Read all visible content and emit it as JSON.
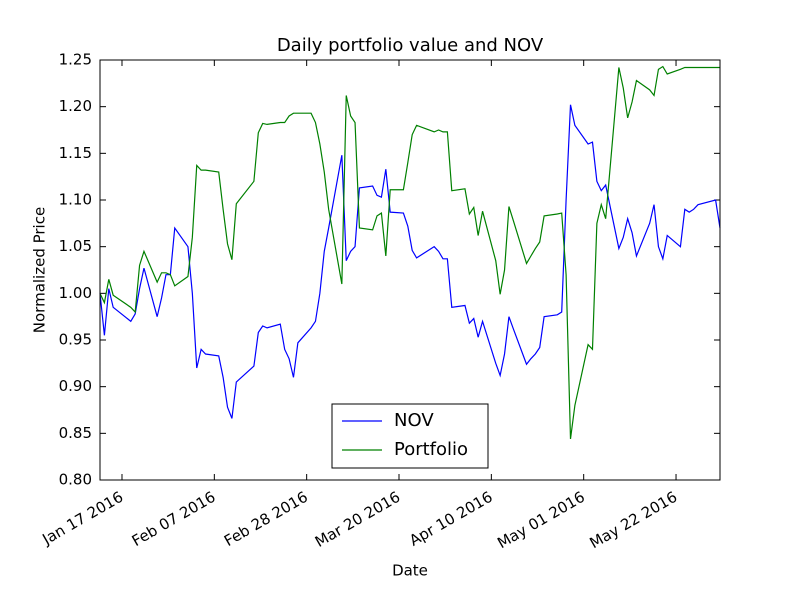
{
  "chart_data": {
    "type": "line",
    "title": "Daily portfolio value and NOV",
    "x_label": "Date",
    "y_label": "Normalized Price",
    "x": [
      "2016-01-12",
      "2016-01-13",
      "2016-01-14",
      "2016-01-15",
      "2016-01-19",
      "2016-01-20",
      "2016-01-21",
      "2016-01-22",
      "2016-01-25",
      "2016-01-26",
      "2016-01-27",
      "2016-01-28",
      "2016-01-29",
      "2016-02-01",
      "2016-02-02",
      "2016-02-03",
      "2016-02-04",
      "2016-02-05",
      "2016-02-08",
      "2016-02-09",
      "2016-02-10",
      "2016-02-11",
      "2016-02-12",
      "2016-02-16",
      "2016-02-17",
      "2016-02-18",
      "2016-02-19",
      "2016-02-22",
      "2016-02-23",
      "2016-02-24",
      "2016-02-25",
      "2016-02-26",
      "2016-02-29",
      "2016-03-01",
      "2016-03-02",
      "2016-03-03",
      "2016-03-04",
      "2016-03-07",
      "2016-03-08",
      "2016-03-09",
      "2016-03-10",
      "2016-03-11",
      "2016-03-14",
      "2016-03-15",
      "2016-03-16",
      "2016-03-17",
      "2016-03-18",
      "2016-03-21",
      "2016-03-22",
      "2016-03-23",
      "2016-03-24",
      "2016-03-28",
      "2016-03-29",
      "2016-03-30",
      "2016-03-31",
      "2016-04-01",
      "2016-04-04",
      "2016-04-05",
      "2016-04-06",
      "2016-04-07",
      "2016-04-08",
      "2016-04-11",
      "2016-04-12",
      "2016-04-13",
      "2016-04-14",
      "2016-04-15",
      "2016-04-18",
      "2016-04-19",
      "2016-04-20",
      "2016-04-21",
      "2016-04-22",
      "2016-04-25",
      "2016-04-26",
      "2016-04-27",
      "2016-04-28",
      "2016-04-29",
      "2016-05-02",
      "2016-05-03",
      "2016-05-04",
      "2016-05-05",
      "2016-05-06",
      "2016-05-09",
      "2016-05-10",
      "2016-05-11",
      "2016-05-12",
      "2016-05-13",
      "2016-05-16",
      "2016-05-17",
      "2016-05-18",
      "2016-05-19",
      "2016-05-20",
      "2016-05-23",
      "2016-05-24",
      "2016-05-25",
      "2016-05-26",
      "2016-05-27",
      "2016-05-31",
      "2016-06-01"
    ],
    "series": [
      {
        "name": "NOV",
        "color": "#0000ff",
        "values": [
          1.0,
          0.955,
          1.005,
          0.985,
          0.97,
          0.978,
          1.005,
          1.027,
          0.975,
          0.995,
          1.02,
          1.02,
          1.07,
          1.05,
          1.0,
          0.92,
          0.94,
          0.935,
          0.933,
          0.91,
          0.878,
          0.866,
          0.905,
          0.922,
          0.958,
          0.965,
          0.963,
          0.967,
          0.94,
          0.93,
          0.91,
          0.947,
          0.963,
          0.97,
          1.0,
          1.045,
          1.07,
          1.148,
          1.035,
          1.045,
          1.05,
          1.113,
          1.115,
          1.105,
          1.103,
          1.133,
          1.087,
          1.086,
          1.072,
          1.046,
          1.038,
          1.05,
          1.045,
          1.037,
          1.037,
          0.985,
          0.987,
          0.968,
          0.973,
          0.953,
          0.97,
          0.925,
          0.912,
          0.935,
          0.975,
          0.962,
          0.924,
          0.93,
          0.935,
          0.942,
          0.975,
          0.977,
          0.98,
          1.1,
          1.202,
          1.18,
          1.16,
          1.162,
          1.12,
          1.11,
          1.116,
          1.048,
          1.06,
          1.08,
          1.065,
          1.04,
          1.075,
          1.095,
          1.05,
          1.037,
          1.062,
          1.05,
          1.09,
          1.087,
          1.09,
          1.095,
          1.1,
          1.07
        ]
      },
      {
        "name": "Portfolio",
        "color": "#008000",
        "values": [
          1.0,
          0.99,
          1.015,
          0.998,
          0.985,
          0.98,
          1.03,
          1.045,
          1.012,
          1.022,
          1.022,
          1.02,
          1.008,
          1.018,
          1.06,
          1.137,
          1.132,
          1.132,
          1.13,
          1.09,
          1.053,
          1.036,
          1.096,
          1.12,
          1.172,
          1.182,
          1.181,
          1.183,
          1.183,
          1.19,
          1.193,
          1.193,
          1.193,
          1.183,
          1.16,
          1.13,
          1.09,
          1.01,
          1.212,
          1.19,
          1.183,
          1.07,
          1.068,
          1.083,
          1.086,
          1.04,
          1.111,
          1.111,
          1.14,
          1.17,
          1.18,
          1.173,
          1.175,
          1.173,
          1.173,
          1.11,
          1.112,
          1.085,
          1.092,
          1.062,
          1.088,
          1.035,
          0.999,
          1.025,
          1.093,
          1.078,
          1.032,
          1.04,
          1.048,
          1.055,
          1.083,
          1.085,
          1.086,
          1.02,
          0.844,
          0.88,
          0.945,
          0.94,
          1.075,
          1.095,
          1.08,
          1.242,
          1.22,
          1.188,
          1.205,
          1.228,
          1.218,
          1.212,
          1.24,
          1.243,
          1.235,
          1.24,
          1.242,
          1.242,
          1.242,
          1.242,
          1.242,
          1.242
        ]
      }
    ],
    "xlim": [
      "2016-01-12",
      "2016-06-01"
    ],
    "xticks": [
      {
        "value": "2016-01-17",
        "label": "Jan 17 2016"
      },
      {
        "value": "2016-02-07",
        "label": "Feb 07 2016"
      },
      {
        "value": "2016-02-28",
        "label": "Feb 28 2016"
      },
      {
        "value": "2016-03-20",
        "label": "Mar 20 2016"
      },
      {
        "value": "2016-04-10",
        "label": "Apr 10 2016"
      },
      {
        "value": "2016-05-01",
        "label": "May 01 2016"
      },
      {
        "value": "2016-05-22",
        "label": "May 22 2016"
      }
    ],
    "ylim": [
      0.8,
      1.25
    ],
    "yticks": [
      {
        "value": 0.8,
        "label": "0.80"
      },
      0.85,
      {
        "value": 0.9,
        "label": "0.90"
      },
      0.95,
      {
        "value": 1.0,
        "label": "1.00"
      },
      1.05,
      {
        "value": 1.1,
        "label": "1.10"
      },
      1.15,
      {
        "value": 1.2,
        "label": "1.20"
      },
      1.25
    ],
    "legend": "lower center"
  }
}
